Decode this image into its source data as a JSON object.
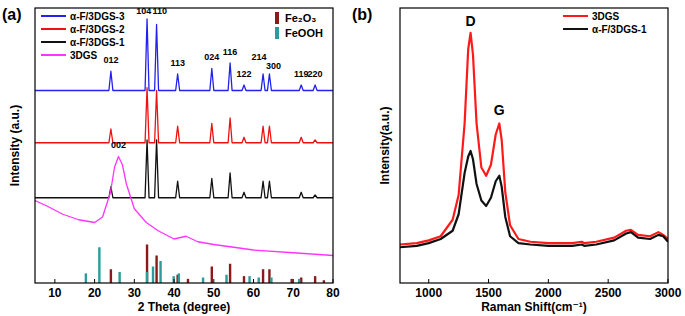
{
  "chart_data": [
    {
      "type": "line",
      "title": "(a)",
      "x_label": "2 Theta (degree)",
      "y_label": "Intensity (a.u.)",
      "xlim": [
        5,
        80
      ],
      "xticks": [
        10,
        20,
        30,
        40,
        50,
        60,
        70,
        80
      ],
      "ylim": [
        0,
        100
      ],
      "tick_labels": "x",
      "grid": false,
      "legend": "upper left",
      "series": [
        {
          "name": "α-F/3DGS-3",
          "color": "#2222ee",
          "type": "line",
          "x": [
            5,
            23.6,
            24.1,
            24.6,
            32.7,
            33.2,
            33.7,
            35.1,
            35.6,
            36.1,
            40.4,
            40.9,
            41.4,
            49,
            49.5,
            50,
            53.6,
            54.1,
            54.6,
            57.1,
            57.6,
            58.1,
            61.9,
            62.4,
            62.9,
            63.5,
            64,
            64.5,
            71.5,
            72,
            72.5,
            75,
            75.5,
            76,
            80
          ],
          "values": [
            70,
            70,
            77,
            70,
            70,
            96,
            70,
            70,
            94,
            70,
            70,
            76,
            70,
            70,
            78,
            70,
            70,
            80,
            70,
            70,
            72,
            70,
            70,
            76,
            70,
            70,
            76,
            70,
            70,
            72,
            70,
            70,
            72,
            70,
            70
          ]
        },
        {
          "name": "α-F/3DGS-2",
          "color": "#ee1111",
          "type": "line",
          "x": [
            5,
            23.6,
            24.1,
            24.6,
            32.7,
            33.2,
            33.7,
            35.1,
            35.6,
            36.1,
            40.4,
            40.9,
            41.4,
            49,
            49.5,
            50,
            53.6,
            54.1,
            54.6,
            57.1,
            57.6,
            58.1,
            61.9,
            62.4,
            62.9,
            63.5,
            64,
            64.5,
            71.5,
            72,
            72.5,
            75,
            75.5,
            76,
            80
          ],
          "values": [
            51,
            51,
            56,
            51,
            51,
            71,
            51,
            51,
            70,
            51,
            51,
            57,
            51,
            51,
            58,
            51,
            51,
            60,
            51,
            51,
            53,
            51,
            51,
            57,
            51,
            51,
            57,
            51,
            51,
            53,
            51,
            51,
            52,
            51,
            51
          ]
        },
        {
          "name": "α-F/3DGS-1",
          "color": "#111111",
          "type": "line",
          "x": [
            5,
            23.6,
            24.1,
            24.6,
            32.7,
            33.2,
            33.7,
            35.1,
            35.6,
            36.1,
            40.4,
            40.9,
            41.4,
            49,
            49.5,
            50,
            53.6,
            54.1,
            54.6,
            57.1,
            57.6,
            58.1,
            61.9,
            62.4,
            62.9,
            63.5,
            64,
            64.5,
            71.5,
            72,
            72.5,
            75,
            75.5,
            76,
            80
          ],
          "values": [
            31,
            31,
            35,
            31,
            31,
            52,
            31,
            31,
            52,
            31,
            31,
            37,
            31,
            31,
            38,
            31,
            31,
            40,
            31,
            31,
            33,
            31,
            31,
            37,
            31,
            31,
            37,
            31,
            31,
            33,
            31,
            31,
            32,
            31,
            31
          ]
        },
        {
          "name": "3DGS",
          "color": "#ff33ff",
          "type": "line",
          "x": [
            5,
            8,
            12,
            16,
            20,
            22,
            24,
            25,
            26,
            27,
            28,
            30,
            33,
            36,
            40,
            43,
            46,
            50,
            55,
            60,
            70,
            80
          ],
          "values": [
            30,
            28,
            25,
            23,
            22,
            24,
            33,
            42,
            46,
            43,
            36,
            27,
            22,
            19,
            16,
            17,
            15,
            14,
            13,
            12,
            11,
            10
          ]
        },
        {
          "name": "Fe₂O₃",
          "color": "#8b1a1a",
          "type": "bar",
          "x": [
            24.1,
            33.2,
            35.6,
            40.9,
            43.5,
            49.5,
            54.1,
            57.6,
            62.4,
            64,
            69.6,
            72,
            75.5,
            77.7
          ],
          "values": [
            5,
            14,
            10,
            3,
            1.5,
            6,
            7,
            2.5,
            5,
            5,
            1.5,
            2,
            2.5,
            1
          ]
        },
        {
          "name": "FeOOH",
          "color": "#2a9d9a",
          "type": "bar",
          "x": [
            17.8,
            21.2,
            26.3,
            33.2,
            34.7,
            36.6,
            39.9,
            41.2,
            47.3,
            53.2,
            59,
            61.3,
            64.5,
            71.5
          ],
          "values": [
            3.5,
            13,
            4,
            4,
            6,
            8,
            2.5,
            3.5,
            2,
            3,
            2.5,
            2,
            2,
            1.5
          ]
        }
      ],
      "annotations": [
        {
          "text": "012",
          "x": 24.1,
          "y": 80
        },
        {
          "text": "104",
          "x": 32.4,
          "y": 98
        },
        {
          "text": "110",
          "x": 36.4,
          "y": 98
        },
        {
          "text": "113",
          "x": 40.9,
          "y": 79
        },
        {
          "text": "024",
          "x": 49.5,
          "y": 81
        },
        {
          "text": "116",
          "x": 54.1,
          "y": 83
        },
        {
          "text": "122",
          "x": 57.6,
          "y": 75
        },
        {
          "text": "214",
          "x": 61.4,
          "y": 81
        },
        {
          "text": "300",
          "x": 65,
          "y": 78
        },
        {
          "text": "119",
          "x": 72,
          "y": 75
        },
        {
          "text": "220",
          "x": 75.5,
          "y": 75
        },
        {
          "text": "002",
          "x": 26,
          "y": 49
        }
      ]
    },
    {
      "type": "line",
      "title": "(b)",
      "x_label": "Raman Shift(cm⁻¹)",
      "y_label": "Intensity(a.u.)",
      "xlim": [
        760,
        3000
      ],
      "xticks": [
        1000,
        1500,
        2000,
        2500,
        3000
      ],
      "ylim": [
        0,
        100
      ],
      "tick_labels": "x",
      "grid": false,
      "legend": "upper right",
      "series": [
        {
          "name": "3DGS",
          "color": "#ff1a1a",
          "type": "line",
          "x": [
            760,
            900,
            1000,
            1100,
            1200,
            1250,
            1300,
            1330,
            1350,
            1370,
            1400,
            1440,
            1480,
            1520,
            1560,
            1590,
            1610,
            1640,
            1680,
            1750,
            1850,
            2000,
            2200,
            2280,
            2300,
            2400,
            2550,
            2650,
            2690,
            2750,
            2850,
            2920,
            2960,
            3000
          ],
          "values": [
            14,
            14.5,
            15.5,
            17,
            23,
            32,
            58,
            85,
            91,
            83,
            58,
            42,
            39,
            43,
            54,
            58,
            52,
            33,
            21,
            16,
            15,
            14.5,
            14.5,
            15,
            14.5,
            15,
            16.5,
            19,
            19.3,
            17.5,
            17,
            18.5,
            17.5,
            16
          ]
        },
        {
          "name": "α-F/3DGS-1",
          "color": "#111111",
          "type": "line",
          "x": [
            760,
            900,
            1000,
            1100,
            1200,
            1250,
            1300,
            1330,
            1350,
            1370,
            1400,
            1440,
            1480,
            1520,
            1560,
            1590,
            1610,
            1640,
            1680,
            1750,
            1850,
            2000,
            2200,
            2280,
            2300,
            2400,
            2550,
            2650,
            2690,
            2750,
            2850,
            2920,
            2960,
            3000
          ],
          "values": [
            13,
            13.5,
            14.5,
            16,
            19,
            25,
            40,
            46,
            48,
            45,
            36,
            30,
            28,
            31,
            37,
            39,
            35,
            24,
            17,
            14.5,
            14,
            13.5,
            13.5,
            14,
            13.5,
            14,
            15.5,
            18,
            18.5,
            16.5,
            16,
            17.5,
            17,
            15
          ]
        }
      ],
      "annotations": [
        {
          "text": "D",
          "x": 1350,
          "y": 93.5
        },
        {
          "text": "G",
          "x": 1590,
          "y": 61
        }
      ]
    }
  ]
}
